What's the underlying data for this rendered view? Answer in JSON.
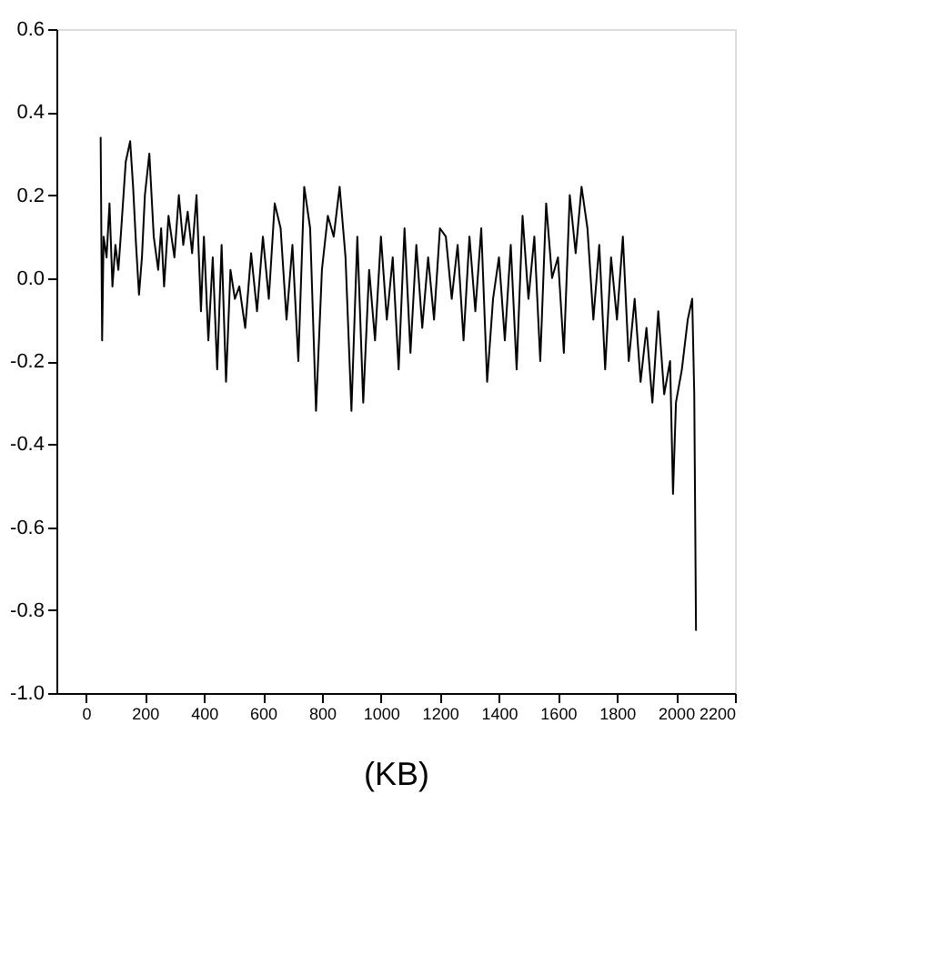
{
  "chart_data": {
    "type": "line",
    "xlabel": "(KB)",
    "xlim": [
      -100,
      2200
    ],
    "xticks": [
      0,
      200,
      400,
      600,
      800,
      1000,
      1200,
      1400,
      1600,
      1800,
      2000,
      2200
    ],
    "ylim": [
      -1.0,
      0.6
    ],
    "yticks": [
      {
        "value": 0.6,
        "label": "0.6"
      },
      {
        "value": 0.4,
        "label": "0.4"
      },
      {
        "value": 0.2,
        "label": "0.2"
      },
      {
        "value": 0,
        "label": "0.0"
      },
      {
        "value": -0.2,
        "label": "-0.2"
      },
      {
        "value": -0.4,
        "label": "-0.4"
      },
      {
        "value": -0.6,
        "label": "-0.6"
      },
      {
        "value": -0.8,
        "label": "-0.8"
      },
      {
        "value": -1.0,
        "label": "-1.0"
      }
    ],
    "grid": false,
    "marker": "none",
    "line_style": "solid",
    "series": [
      {
        "color": "#000000",
        "x": [
          50,
          55,
          60,
          70,
          80,
          90,
          100,
          110,
          120,
          135,
          150,
          160,
          170,
          180,
          190,
          200,
          215,
          230,
          245,
          255,
          265,
          280,
          300,
          315,
          330,
          345,
          360,
          375,
          390,
          400,
          415,
          430,
          445,
          460,
          475,
          490,
          505,
          520,
          540,
          560,
          580,
          600,
          620,
          640,
          660,
          680,
          700,
          720,
          740,
          760,
          780,
          800,
          820,
          840,
          860,
          880,
          900,
          920,
          940,
          960,
          980,
          1000,
          1020,
          1040,
          1060,
          1080,
          1100,
          1120,
          1140,
          1160,
          1180,
          1200,
          1220,
          1240,
          1260,
          1280,
          1300,
          1320,
          1340,
          1360,
          1380,
          1400,
          1420,
          1440,
          1460,
          1480,
          1500,
          1520,
          1540,
          1560,
          1580,
          1600,
          1620,
          1640,
          1660,
          1680,
          1700,
          1720,
          1740,
          1760,
          1780,
          1800,
          1820,
          1840,
          1860,
          1880,
          1900,
          1920,
          1940,
          1960,
          1980,
          1990,
          2000,
          2020,
          2040,
          2055,
          2062,
          2068
        ],
        "values": [
          0.34,
          -0.15,
          0.1,
          0.05,
          0.18,
          -0.02,
          0.08,
          0.02,
          0.12,
          0.28,
          0.33,
          0.22,
          0.08,
          -0.04,
          0.05,
          0.2,
          0.3,
          0.1,
          0.02,
          0.12,
          -0.02,
          0.15,
          0.05,
          0.2,
          0.08,
          0.16,
          0.06,
          0.2,
          -0.08,
          0.1,
          -0.15,
          0.05,
          -0.22,
          0.08,
          -0.25,
          0.02,
          -0.05,
          -0.02,
          -0.12,
          0.06,
          -0.08,
          0.1,
          -0.05,
          0.18,
          0.12,
          -0.1,
          0.08,
          -0.2,
          0.22,
          0.12,
          -0.32,
          0.02,
          0.15,
          0.1,
          0.22,
          0.05,
          -0.32,
          0.1,
          -0.3,
          0.02,
          -0.15,
          0.1,
          -0.1,
          0.05,
          -0.22,
          0.12,
          -0.18,
          0.08,
          -0.12,
          0.05,
          -0.1,
          0.12,
          0.1,
          -0.05,
          0.08,
          -0.15,
          0.1,
          -0.08,
          0.12,
          -0.25,
          -0.05,
          0.05,
          -0.15,
          0.08,
          -0.22,
          0.15,
          -0.05,
          0.1,
          -0.2,
          0.18,
          0.0,
          0.05,
          -0.18,
          0.2,
          0.06,
          0.22,
          0.12,
          -0.1,
          0.08,
          -0.22,
          0.05,
          -0.1,
          0.1,
          -0.2,
          -0.05,
          -0.25,
          -0.12,
          -0.3,
          -0.08,
          -0.28,
          -0.2,
          -0.52,
          -0.3,
          -0.22,
          -0.1,
          -0.05,
          -0.28,
          -0.85
        ]
      }
    ]
  }
}
